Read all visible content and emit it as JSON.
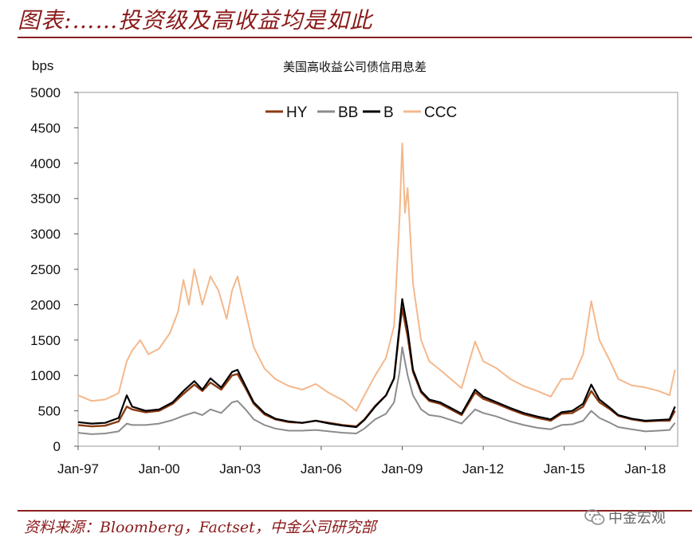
{
  "header": {
    "title": "图表:……投资级及高收益均是如此"
  },
  "footer": {
    "source": "资料来源：Bloomberg，Factset，中金公司研究部",
    "watermark": "中金宏观",
    "watermark_icon": "wechat-icon"
  },
  "colors": {
    "accent": "#8b1a1a",
    "HY": "#8b3a12",
    "BB": "#8c8c8c",
    "B": "#000000",
    "CCC": "#f4b88c"
  },
  "chart_data": {
    "type": "line",
    "title": "美国高收益公司债信用息差",
    "ylabel": "bps",
    "xlabel": "",
    "ylim": [
      0,
      5000
    ],
    "xlim": [
      1997.0,
      2019.2
    ],
    "yticks": [
      "0",
      "500",
      "1000",
      "1500",
      "2000",
      "2500",
      "3000",
      "3500",
      "4000",
      "4500",
      "5000"
    ],
    "xticks": [
      {
        "label": "Jan-97",
        "x": 1997.0
      },
      {
        "label": "Jan-00",
        "x": 2000.0
      },
      {
        "label": "Jan-03",
        "x": 2003.0
      },
      {
        "label": "Jan-06",
        "x": 2006.0
      },
      {
        "label": "Jan-09",
        "x": 2009.0
      },
      {
        "label": "Jan-12",
        "x": 2012.0
      },
      {
        "label": "Jan-15",
        "x": 2015.0
      },
      {
        "label": "Jan-18",
        "x": 2018.0
      }
    ],
    "grid": false,
    "legend_position": "top-center",
    "series": [
      {
        "name": "HY",
        "points": [
          [
            1997.0,
            300
          ],
          [
            1997.5,
            280
          ],
          [
            1998.0,
            290
          ],
          [
            1998.5,
            350
          ],
          [
            1998.8,
            560
          ],
          [
            1999.0,
            520
          ],
          [
            1999.5,
            480
          ],
          [
            2000.0,
            500
          ],
          [
            2000.5,
            600
          ],
          [
            2000.9,
            740
          ],
          [
            2001.3,
            870
          ],
          [
            2001.6,
            780
          ],
          [
            2001.9,
            900
          ],
          [
            2002.3,
            800
          ],
          [
            2002.7,
            1000
          ],
          [
            2002.9,
            1020
          ],
          [
            2003.2,
            820
          ],
          [
            2003.5,
            600
          ],
          [
            2003.9,
            450
          ],
          [
            2004.3,
            380
          ],
          [
            2004.8,
            340
          ],
          [
            2005.3,
            330
          ],
          [
            2005.8,
            360
          ],
          [
            2006.3,
            330
          ],
          [
            2006.8,
            300
          ],
          [
            2007.3,
            280
          ],
          [
            2007.6,
            380
          ],
          [
            2008.0,
            570
          ],
          [
            2008.4,
            720
          ],
          [
            2008.7,
            960
          ],
          [
            2008.9,
            1650
          ],
          [
            2009.0,
            1950
          ],
          [
            2009.2,
            1550
          ],
          [
            2009.4,
            1050
          ],
          [
            2009.7,
            760
          ],
          [
            2010.0,
            640
          ],
          [
            2010.4,
            600
          ],
          [
            2010.8,
            520
          ],
          [
            2011.2,
            440
          ],
          [
            2011.7,
            760
          ],
          [
            2012.0,
            670
          ],
          [
            2012.5,
            600
          ],
          [
            2013.0,
            520
          ],
          [
            2013.5,
            450
          ],
          [
            2014.0,
            400
          ],
          [
            2014.5,
            360
          ],
          [
            2014.9,
            460
          ],
          [
            2015.3,
            470
          ],
          [
            2015.7,
            560
          ],
          [
            2016.0,
            780
          ],
          [
            2016.3,
            620
          ],
          [
            2016.7,
            520
          ],
          [
            2017.0,
            430
          ],
          [
            2017.5,
            380
          ],
          [
            2018.0,
            350
          ],
          [
            2018.5,
            360
          ],
          [
            2018.9,
            360
          ],
          [
            2019.1,
            500
          ]
        ]
      },
      {
        "name": "BB",
        "points": [
          [
            1997.0,
            190
          ],
          [
            1997.5,
            170
          ],
          [
            1998.0,
            180
          ],
          [
            1998.5,
            210
          ],
          [
            1998.8,
            320
          ],
          [
            1999.0,
            300
          ],
          [
            1999.5,
            300
          ],
          [
            2000.0,
            320
          ],
          [
            2000.5,
            370
          ],
          [
            2000.9,
            430
          ],
          [
            2001.3,
            480
          ],
          [
            2001.6,
            440
          ],
          [
            2001.9,
            520
          ],
          [
            2002.3,
            470
          ],
          [
            2002.7,
            620
          ],
          [
            2002.9,
            640
          ],
          [
            2003.2,
            520
          ],
          [
            2003.5,
            380
          ],
          [
            2003.9,
            300
          ],
          [
            2004.3,
            250
          ],
          [
            2004.8,
            220
          ],
          [
            2005.3,
            220
          ],
          [
            2005.8,
            230
          ],
          [
            2006.3,
            210
          ],
          [
            2006.8,
            190
          ],
          [
            2007.3,
            180
          ],
          [
            2007.6,
            250
          ],
          [
            2008.0,
            380
          ],
          [
            2008.4,
            460
          ],
          [
            2008.7,
            620
          ],
          [
            2008.9,
            1050
          ],
          [
            2009.0,
            1400
          ],
          [
            2009.2,
            1000
          ],
          [
            2009.4,
            720
          ],
          [
            2009.7,
            520
          ],
          [
            2010.0,
            440
          ],
          [
            2010.4,
            420
          ],
          [
            2010.8,
            370
          ],
          [
            2011.2,
            320
          ],
          [
            2011.7,
            520
          ],
          [
            2012.0,
            470
          ],
          [
            2012.5,
            420
          ],
          [
            2013.0,
            350
          ],
          [
            2013.5,
            300
          ],
          [
            2014.0,
            260
          ],
          [
            2014.5,
            240
          ],
          [
            2014.9,
            300
          ],
          [
            2015.3,
            310
          ],
          [
            2015.7,
            360
          ],
          [
            2016.0,
            500
          ],
          [
            2016.3,
            400
          ],
          [
            2016.7,
            330
          ],
          [
            2017.0,
            270
          ],
          [
            2017.5,
            240
          ],
          [
            2018.0,
            210
          ],
          [
            2018.5,
            220
          ],
          [
            2018.9,
            230
          ],
          [
            2019.1,
            330
          ]
        ]
      },
      {
        "name": "B",
        "points": [
          [
            1997.0,
            340
          ],
          [
            1997.5,
            320
          ],
          [
            1998.0,
            330
          ],
          [
            1998.5,
            400
          ],
          [
            1998.8,
            720
          ],
          [
            1999.0,
            560
          ],
          [
            1999.5,
            500
          ],
          [
            2000.0,
            520
          ],
          [
            2000.5,
            620
          ],
          [
            2000.9,
            780
          ],
          [
            2001.3,
            920
          ],
          [
            2001.6,
            800
          ],
          [
            2001.9,
            960
          ],
          [
            2002.3,
            830
          ],
          [
            2002.7,
            1050
          ],
          [
            2002.9,
            1080
          ],
          [
            2003.2,
            850
          ],
          [
            2003.5,
            620
          ],
          [
            2003.9,
            470
          ],
          [
            2004.3,
            390
          ],
          [
            2004.8,
            350
          ],
          [
            2005.3,
            330
          ],
          [
            2005.8,
            360
          ],
          [
            2006.3,
            320
          ],
          [
            2006.8,
            290
          ],
          [
            2007.3,
            270
          ],
          [
            2007.6,
            370
          ],
          [
            2008.0,
            560
          ],
          [
            2008.4,
            720
          ],
          [
            2008.7,
            960
          ],
          [
            2008.9,
            1700
          ],
          [
            2009.0,
            2080
          ],
          [
            2009.2,
            1650
          ],
          [
            2009.4,
            1080
          ],
          [
            2009.7,
            780
          ],
          [
            2010.0,
            660
          ],
          [
            2010.4,
            620
          ],
          [
            2010.8,
            540
          ],
          [
            2011.2,
            460
          ],
          [
            2011.7,
            800
          ],
          [
            2012.0,
            700
          ],
          [
            2012.5,
            620
          ],
          [
            2013.0,
            540
          ],
          [
            2013.5,
            470
          ],
          [
            2014.0,
            420
          ],
          [
            2014.5,
            380
          ],
          [
            2014.9,
            480
          ],
          [
            2015.3,
            500
          ],
          [
            2015.7,
            600
          ],
          [
            2016.0,
            870
          ],
          [
            2016.3,
            660
          ],
          [
            2016.7,
            540
          ],
          [
            2017.0,
            440
          ],
          [
            2017.5,
            390
          ],
          [
            2018.0,
            360
          ],
          [
            2018.5,
            370
          ],
          [
            2018.9,
            380
          ],
          [
            2019.1,
            560
          ]
        ]
      },
      {
        "name": "CCC",
        "points": [
          [
            1997.0,
            720
          ],
          [
            1997.5,
            640
          ],
          [
            1998.0,
            660
          ],
          [
            1998.5,
            750
          ],
          [
            1998.8,
            1200
          ],
          [
            1999.0,
            1350
          ],
          [
            1999.3,
            1500
          ],
          [
            1999.6,
            1300
          ],
          [
            2000.0,
            1380
          ],
          [
            2000.4,
            1600
          ],
          [
            2000.7,
            1900
          ],
          [
            2000.9,
            2350
          ],
          [
            2001.1,
            2000
          ],
          [
            2001.3,
            2500
          ],
          [
            2001.6,
            2000
          ],
          [
            2001.9,
            2400
          ],
          [
            2002.2,
            2200
          ],
          [
            2002.5,
            1800
          ],
          [
            2002.7,
            2200
          ],
          [
            2002.9,
            2400
          ],
          [
            2003.2,
            1900
          ],
          [
            2003.5,
            1400
          ],
          [
            2003.9,
            1100
          ],
          [
            2004.3,
            950
          ],
          [
            2004.8,
            850
          ],
          [
            2005.3,
            800
          ],
          [
            2005.8,
            880
          ],
          [
            2006.3,
            750
          ],
          [
            2006.8,
            650
          ],
          [
            2007.3,
            500
          ],
          [
            2007.6,
            720
          ],
          [
            2008.0,
            1000
          ],
          [
            2008.4,
            1250
          ],
          [
            2008.7,
            1700
          ],
          [
            2008.9,
            3200
          ],
          [
            2009.0,
            4280
          ],
          [
            2009.1,
            3300
          ],
          [
            2009.2,
            3650
          ],
          [
            2009.4,
            2300
          ],
          [
            2009.7,
            1500
          ],
          [
            2010.0,
            1200
          ],
          [
            2010.4,
            1080
          ],
          [
            2010.8,
            950
          ],
          [
            2011.2,
            820
          ],
          [
            2011.7,
            1480
          ],
          [
            2012.0,
            1200
          ],
          [
            2012.5,
            1100
          ],
          [
            2013.0,
            950
          ],
          [
            2013.5,
            850
          ],
          [
            2014.0,
            780
          ],
          [
            2014.5,
            700
          ],
          [
            2014.9,
            950
          ],
          [
            2015.3,
            950
          ],
          [
            2015.7,
            1300
          ],
          [
            2016.0,
            2050
          ],
          [
            2016.3,
            1500
          ],
          [
            2016.7,
            1200
          ],
          [
            2017.0,
            950
          ],
          [
            2017.5,
            860
          ],
          [
            2018.0,
            830
          ],
          [
            2018.5,
            780
          ],
          [
            2018.9,
            720
          ],
          [
            2019.1,
            1080
          ]
        ]
      }
    ]
  }
}
